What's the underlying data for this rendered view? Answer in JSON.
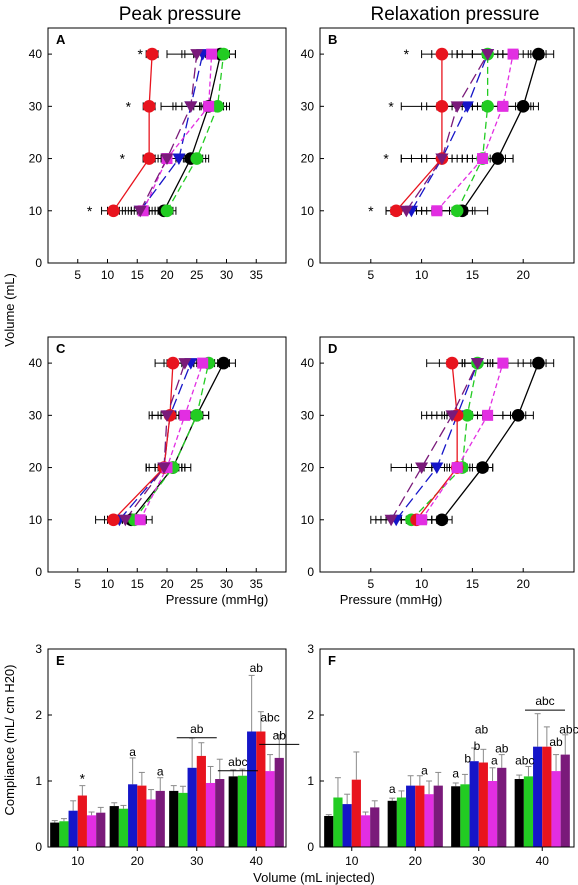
{
  "column_titles": [
    "Peak pressure",
    "Relaxation pressure"
  ],
  "line_ylabel": "Volume (mL)",
  "bar_ylabel": "Compliance (mL/ cm H20)",
  "bar_xlabel": "Volume  (mL injected)",
  "line_xlabel": "Pressure (mmHg)",
  "colors": {
    "black": "#000000",
    "green": "#22cc22",
    "blue": "#1515c8",
    "red": "#e8141e",
    "magenta": "#e22ee2",
    "purple": "#7a1a7a"
  },
  "chart_data": [
    {
      "panel": "A",
      "type": "line",
      "xlabel": "",
      "ylabel": "Volume (mL)",
      "xlim": [
        0,
        40
      ],
      "ylim": [
        0,
        45
      ],
      "xticks": [
        5,
        10,
        15,
        20,
        25,
        30,
        35
      ],
      "yticks": [
        0,
        10,
        20,
        30,
        40
      ],
      "y": [
        10,
        20,
        30,
        40
      ],
      "series": [
        {
          "color": "black",
          "marker": "circle",
          "dash": "solid",
          "x": [
            19.5,
            24,
            27,
            29
          ],
          "err": [
            1.5,
            2.5,
            2.5,
            2.5
          ]
        },
        {
          "color": "green",
          "marker": "circle",
          "dash": "dash",
          "x": [
            20,
            25,
            28.5,
            29.5
          ],
          "err": [
            1.5,
            2,
            2,
            2
          ]
        },
        {
          "color": "blue",
          "marker": "triangle",
          "dash": "longdash",
          "x": [
            15.5,
            22,
            24,
            26
          ],
          "err": [
            2,
            3,
            3,
            3
          ]
        },
        {
          "color": "red",
          "marker": "circle",
          "dash": "solid",
          "x": [
            11,
            17,
            17,
            17.5
          ],
          "err": [
            2,
            1,
            1,
            1
          ]
        },
        {
          "color": "magenta",
          "marker": "square",
          "dash": "shortdash",
          "x": [
            16,
            20,
            27,
            27.5
          ],
          "err": [
            2,
            3,
            3,
            3
          ]
        },
        {
          "color": "purple",
          "marker": "triangle",
          "dash": "longdash",
          "x": [
            15.5,
            20,
            24,
            25
          ],
          "err": [
            3,
            4,
            5,
            5
          ]
        }
      ],
      "annotations": [
        {
          "text": "*",
          "x": 7,
          "y": 10
        },
        {
          "text": "*",
          "x": 12.5,
          "y": 20
        },
        {
          "text": "*",
          "x": 13.5,
          "y": 30
        },
        {
          "text": "*",
          "x": 15.5,
          "y": 40
        }
      ]
    },
    {
      "panel": "B",
      "type": "line",
      "xlabel": "",
      "ylabel": "",
      "xlim": [
        0,
        25
      ],
      "ylim": [
        0,
        45
      ],
      "xticks": [
        5,
        10,
        15,
        20
      ],
      "yticks": [
        0,
        10,
        20,
        30,
        40
      ],
      "y": [
        10,
        20,
        30,
        40
      ],
      "series": [
        {
          "color": "black",
          "marker": "circle",
          "dash": "solid",
          "x": [
            14,
            17.5,
            20,
            21.5
          ],
          "err": [
            2.5,
            1.5,
            1.5,
            1.5
          ]
        },
        {
          "color": "green",
          "marker": "circle",
          "dash": "dash",
          "x": [
            13.5,
            16,
            16.5,
            16.5
          ],
          "err": [
            1.5,
            3,
            2,
            3
          ]
        },
        {
          "color": "blue",
          "marker": "triangle",
          "dash": "longdash",
          "x": [
            9,
            12,
            14.5,
            16.5
          ],
          "err": [
            2,
            3,
            3,
            3
          ]
        },
        {
          "color": "red",
          "marker": "circle",
          "dash": "solid",
          "x": [
            7.5,
            12,
            12,
            12
          ],
          "err": [
            1,
            4,
            4,
            2
          ]
        },
        {
          "color": "magenta",
          "marker": "square",
          "dash": "shortdash",
          "x": [
            11.5,
            16,
            18,
            19
          ],
          "err": [
            3,
            3,
            3,
            3
          ]
        },
        {
          "color": "purple",
          "marker": "triangle",
          "dash": "longdash",
          "x": [
            8.5,
            12,
            13.5,
            16.5
          ],
          "err": [
            2,
            4,
            3,
            3
          ]
        }
      ],
      "annotations": [
        {
          "text": "*",
          "x": 5,
          "y": 10
        },
        {
          "text": "*",
          "x": 6.5,
          "y": 20
        },
        {
          "text": "*",
          "x": 7,
          "y": 30
        },
        {
          "text": "*",
          "x": 8.5,
          "y": 40
        }
      ]
    },
    {
      "panel": "C",
      "type": "line",
      "xlabel": "Pressure (mmHg)",
      "ylabel": "",
      "xlim": [
        0,
        40
      ],
      "ylim": [
        0,
        45
      ],
      "xticks": [
        5,
        10,
        15,
        20,
        25,
        30,
        35
      ],
      "yticks": [
        0,
        10,
        20,
        30,
        40
      ],
      "y": [
        10,
        20,
        30,
        40
      ],
      "series": [
        {
          "color": "black",
          "marker": "circle",
          "dash": "solid",
          "x": [
            14,
            21,
            25,
            29.5
          ],
          "err": [
            2,
            2,
            2,
            2
          ]
        },
        {
          "color": "green",
          "marker": "circle",
          "dash": "dash",
          "x": [
            14.5,
            21,
            25,
            27
          ],
          "err": [
            2,
            3,
            2,
            2
          ]
        },
        {
          "color": "blue",
          "marker": "triangle",
          "dash": "longdash",
          "x": [
            12,
            19.5,
            20.5,
            24
          ],
          "err": [
            2,
            3,
            3,
            3
          ]
        },
        {
          "color": "red",
          "marker": "circle",
          "dash": "solid",
          "x": [
            11,
            19.5,
            20.5,
            21
          ],
          "err": [
            3,
            3,
            3,
            3
          ]
        },
        {
          "color": "magenta",
          "marker": "square",
          "dash": "shortdash",
          "x": [
            15.5,
            20,
            23,
            26
          ],
          "err": [
            2,
            3,
            3,
            3
          ]
        },
        {
          "color": "purple",
          "marker": "triangle",
          "dash": "longdash",
          "x": [
            13,
            19.5,
            20,
            23
          ],
          "err": [
            3,
            3,
            3,
            3
          ]
        }
      ],
      "annotations": []
    },
    {
      "panel": "D",
      "type": "line",
      "xlabel": "Pressure (mmHg)",
      "ylabel": "",
      "xlim": [
        0,
        25
      ],
      "ylim": [
        0,
        45
      ],
      "xticks": [
        5,
        10,
        15,
        20
      ],
      "yticks": [
        0,
        10,
        20,
        30,
        40
      ],
      "y": [
        10,
        20,
        30,
        40
      ],
      "series": [
        {
          "color": "black",
          "marker": "circle",
          "dash": "solid",
          "x": [
            12,
            16,
            19.5,
            21.5
          ],
          "err": [
            1,
            1,
            1.5,
            1.5
          ]
        },
        {
          "color": "green",
          "marker": "circle",
          "dash": "dash",
          "x": [
            9,
            14,
            14.5,
            15.5
          ],
          "err": [
            2,
            3,
            2,
            2.5
          ]
        },
        {
          "color": "blue",
          "marker": "triangle",
          "dash": "longdash",
          "x": [
            7.5,
            11.5,
            13.5,
            15.5
          ],
          "err": [
            2,
            2.5,
            3,
            3
          ]
        },
        {
          "color": "red",
          "marker": "circle",
          "dash": "solid",
          "x": [
            9.5,
            13.5,
            13.5,
            13
          ],
          "err": [
            2,
            2,
            2.5,
            2.5
          ]
        },
        {
          "color": "magenta",
          "marker": "square",
          "dash": "shortdash",
          "x": [
            10,
            13.5,
            16.5,
            18
          ],
          "err": [
            2,
            2.5,
            3,
            3
          ]
        },
        {
          "color": "purple",
          "marker": "triangle",
          "dash": "longdash",
          "x": [
            7,
            10,
            13,
            15.5
          ],
          "err": [
            2,
            3,
            3,
            3
          ]
        }
      ],
      "annotations": []
    },
    {
      "panel": "E",
      "type": "bar",
      "xlabel": "",
      "ylabel": "Compliance (mL/ cm H20)",
      "ylim": [
        0,
        3
      ],
      "yticks": [
        0,
        1,
        2,
        3
      ],
      "categories": [
        "10",
        "20",
        "30",
        "40"
      ],
      "series": [
        {
          "color": "black",
          "values": [
            0.37,
            0.62,
            0.85,
            1.07
          ],
          "err": [
            0.03,
            0.05,
            0.08,
            0.1
          ]
        },
        {
          "color": "green",
          "values": [
            0.39,
            0.58,
            0.82,
            1.08
          ],
          "err": [
            0.04,
            0.05,
            0.1,
            0.1
          ]
        },
        {
          "color": "blue",
          "values": [
            0.55,
            0.95,
            1.2,
            1.75
          ],
          "err": [
            0.15,
            0.4,
            0.45,
            0.85
          ]
        },
        {
          "color": "red",
          "values": [
            0.78,
            0.93,
            1.38,
            1.75
          ],
          "err": [
            0.15,
            0.2,
            0.2,
            0.3
          ]
        },
        {
          "color": "magenta",
          "values": [
            0.48,
            0.72,
            0.97,
            1.15
          ],
          "err": [
            0.05,
            0.15,
            0.25,
            0.25
          ]
        },
        {
          "color": "purple",
          "values": [
            0.52,
            0.85,
            1.03,
            1.35
          ],
          "err": [
            0.08,
            0.2,
            0.3,
            0.35
          ]
        }
      ],
      "annotations": [
        {
          "text": "*",
          "cat": 0,
          "bar": 3,
          "y": 0.96
        },
        {
          "text": "a",
          "cat": 1,
          "bar": 2,
          "y": 1.38
        },
        {
          "text": "a",
          "cat": 1,
          "bar": 5,
          "y": 1.08
        },
        {
          "text": "ab",
          "cat": 2,
          "bar": 2.5,
          "y": 1.7,
          "bracket": true
        },
        {
          "text": "abc",
          "cat": 3,
          "bar": 0.5,
          "y": 1.2,
          "bracket": true
        },
        {
          "text": "ab",
          "cat": 3,
          "bar": 2.5,
          "y": 2.65
        },
        {
          "text": "abc",
          "cat": 3,
          "bar": 4,
          "y": 1.9
        },
        {
          "text": "ab",
          "cat": 3,
          "bar": 5,
          "y": 1.6,
          "bracket": true
        }
      ]
    },
    {
      "panel": "F",
      "type": "bar",
      "xlabel": "",
      "ylabel": "",
      "ylim": [
        0,
        3
      ],
      "yticks": [
        0,
        1,
        2,
        3
      ],
      "categories": [
        "10",
        "20",
        "30",
        "40"
      ],
      "series": [
        {
          "color": "black",
          "values": [
            0.47,
            0.7,
            0.92,
            1.03
          ],
          "err": [
            0.02,
            0.04,
            0.05,
            0.06
          ]
        },
        {
          "color": "green",
          "values": [
            0.75,
            0.75,
            0.95,
            1.07
          ],
          "err": [
            0.3,
            0.1,
            0.15,
            0.15
          ]
        },
        {
          "color": "blue",
          "values": [
            0.65,
            0.93,
            1.3,
            1.52
          ],
          "err": [
            0.15,
            0.15,
            0.2,
            0.5
          ]
        },
        {
          "color": "red",
          "values": [
            1.02,
            0.93,
            1.28,
            1.52
          ],
          "err": [
            0.42,
            0.15,
            0.2,
            0.3
          ]
        },
        {
          "color": "magenta",
          "values": [
            0.48,
            0.8,
            1.0,
            1.15
          ],
          "err": [
            0.05,
            0.2,
            0.2,
            0.25
          ]
        },
        {
          "color": "purple",
          "values": [
            0.6,
            0.93,
            1.2,
            1.4
          ],
          "err": [
            0.1,
            0.2,
            0.2,
            0.3
          ]
        }
      ],
      "annotations": [
        {
          "text": "a",
          "cat": 1,
          "bar": 0,
          "y": 0.82
        },
        {
          "text": "a",
          "cat": 1,
          "bar": 3.5,
          "y": 1.1
        },
        {
          "text": "a",
          "cat": 2,
          "bar": 0,
          "y": 1.05
        },
        {
          "text": "b",
          "cat": 2,
          "bar": 1.3,
          "y": 1.28
        },
        {
          "text": "b",
          "cat": 2,
          "bar": 2.3,
          "y": 1.47
        },
        {
          "text": "ab",
          "cat": 2,
          "bar": 2.8,
          "y": 1.72
        },
        {
          "text": "a",
          "cat": 2,
          "bar": 4.2,
          "y": 1.25
        },
        {
          "text": "ab",
          "cat": 2,
          "bar": 5,
          "y": 1.43
        },
        {
          "text": "abc",
          "cat": 3,
          "bar": 0.6,
          "y": 1.25
        },
        {
          "text": "abc",
          "cat": 3,
          "bar": 2.8,
          "y": 2.12,
          "bracket": true
        },
        {
          "text": "ab",
          "cat": 3,
          "bar": 4,
          "y": 1.53
        },
        {
          "text": "abc",
          "cat": 3,
          "bar": 5.4,
          "y": 1.72
        }
      ]
    }
  ]
}
